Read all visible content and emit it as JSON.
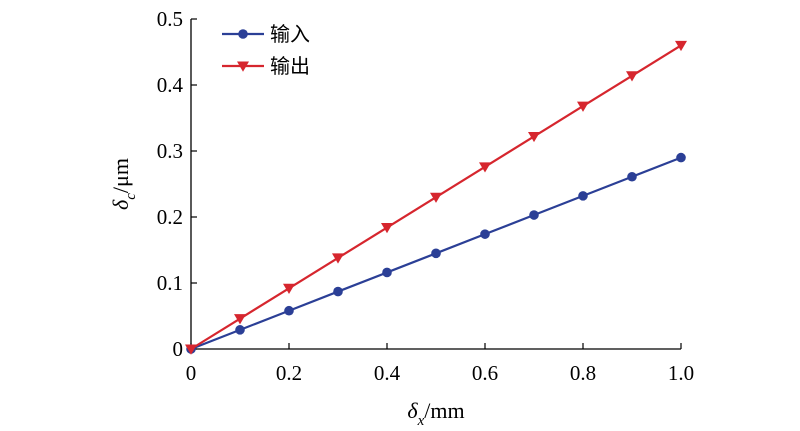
{
  "chart_data": {
    "type": "line",
    "x": [
      0,
      0.1,
      0.2,
      0.3,
      0.4,
      0.5,
      0.6,
      0.7,
      0.8,
      0.9,
      1.0
    ],
    "series": [
      {
        "name": "输入",
        "color": "#2B3F96",
        "marker": "circle",
        "values": [
          0,
          0.029,
          0.058,
          0.087,
          0.116,
          0.145,
          0.174,
          0.203,
          0.232,
          0.261,
          0.29
        ]
      },
      {
        "name": "输出",
        "color": "#D6262E",
        "marker": "triangle-down",
        "values": [
          0,
          0.046,
          0.092,
          0.138,
          0.184,
          0.23,
          0.276,
          0.322,
          0.368,
          0.414,
          0.46
        ]
      }
    ],
    "xlim": [
      0,
      1.0
    ],
    "ylim": [
      0,
      0.5
    ],
    "x_ticks": [
      "0",
      "0.2",
      "0.4",
      "0.6",
      "0.8",
      "1.0"
    ],
    "y_ticks": [
      "0",
      "0.1",
      "0.2",
      "0.3",
      "0.4",
      "0.5"
    ],
    "xlabel": {
      "symbol": "δ",
      "subscript": "x",
      "unit": "/mm"
    },
    "ylabel": {
      "symbol": "δ",
      "subscript": "c",
      "unit": "/μm"
    },
    "legend_position": "top-left",
    "grid": false
  }
}
